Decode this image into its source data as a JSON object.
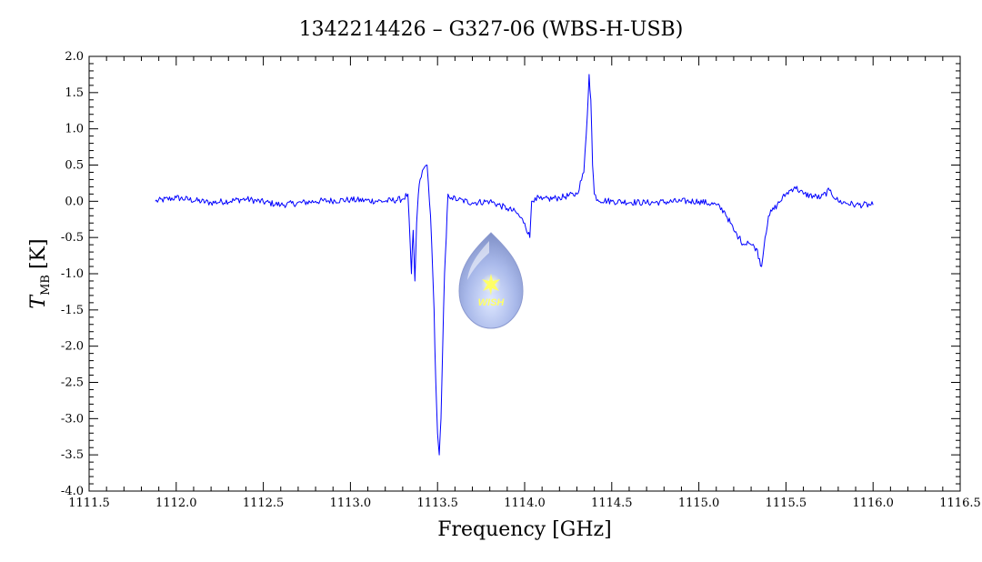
{
  "chart_data": {
    "type": "line",
    "title": "1342214426 – G327-06 (WBS-H-USB)",
    "xlabel": "Frequency [GHz]",
    "ylabel_main": "T",
    "ylabel_sub": "MB",
    "ylabel_unit": "[K]",
    "xlim": [
      1111.5,
      1116.5
    ],
    "ylim": [
      -4.0,
      2.0
    ],
    "x_ticks": [
      "1111.5",
      "1112.0",
      "1112.5",
      "1113.0",
      "1113.5",
      "1114.0",
      "1114.5",
      "1115.0",
      "1115.5",
      "1116.0",
      "1116.5"
    ],
    "y_ticks": [
      "2.0",
      "1.5",
      "1.0",
      "0.5",
      "0.0",
      "-0.5",
      "-1.0",
      "-1.5",
      "-2.0",
      "-2.5",
      "-3.0",
      "-3.5",
      "-4.0"
    ],
    "grid": false,
    "series": [
      {
        "color": "#0000ff",
        "x": [
          1111.88,
          1112.0,
          1112.2,
          1112.4,
          1112.6,
          1112.8,
          1113.0,
          1113.2,
          1113.3,
          1113.33,
          1113.35,
          1113.36,
          1113.37,
          1113.38,
          1113.39,
          1113.4,
          1113.42,
          1113.44,
          1113.46,
          1113.48,
          1113.49,
          1113.5,
          1113.51,
          1113.52,
          1113.53,
          1113.54,
          1113.55,
          1113.56,
          1113.58,
          1113.62,
          1113.7,
          1113.8,
          1113.9,
          1113.95,
          1114.0,
          1114.03,
          1114.04,
          1114.06,
          1114.1,
          1114.2,
          1114.3,
          1114.34,
          1114.36,
          1114.37,
          1114.38,
          1114.39,
          1114.4,
          1114.42,
          1114.5,
          1114.7,
          1114.9,
          1115.0,
          1115.1,
          1115.15,
          1115.2,
          1115.23,
          1115.26,
          1115.28,
          1115.3,
          1115.33,
          1115.36,
          1115.38,
          1115.4,
          1115.45,
          1115.5,
          1115.55,
          1115.6,
          1115.7,
          1115.75,
          1115.8,
          1115.9,
          1116.0
        ],
        "y": [
          0.0,
          0.05,
          -0.02,
          0.03,
          -0.05,
          0.0,
          0.02,
          0.0,
          0.03,
          0.1,
          -1.0,
          -0.4,
          -1.1,
          -0.3,
          0.1,
          0.3,
          0.45,
          0.5,
          -0.2,
          -1.5,
          -2.5,
          -3.2,
          -3.5,
          -3.0,
          -2.0,
          -1.0,
          -0.5,
          0.1,
          0.05,
          0.02,
          -0.02,
          0.0,
          -0.1,
          -0.15,
          -0.3,
          -0.5,
          0.0,
          0.05,
          0.02,
          0.05,
          0.1,
          0.4,
          1.2,
          1.75,
          1.4,
          0.5,
          0.1,
          0.02,
          0.0,
          -0.02,
          0.0,
          0.0,
          -0.05,
          -0.15,
          -0.4,
          -0.5,
          -0.6,
          -0.55,
          -0.6,
          -0.65,
          -0.9,
          -0.5,
          -0.2,
          -0.05,
          0.1,
          0.2,
          0.1,
          0.05,
          0.15,
          0.0,
          -0.05,
          -0.05
        ]
      }
    ],
    "logo_text": "WISH"
  }
}
